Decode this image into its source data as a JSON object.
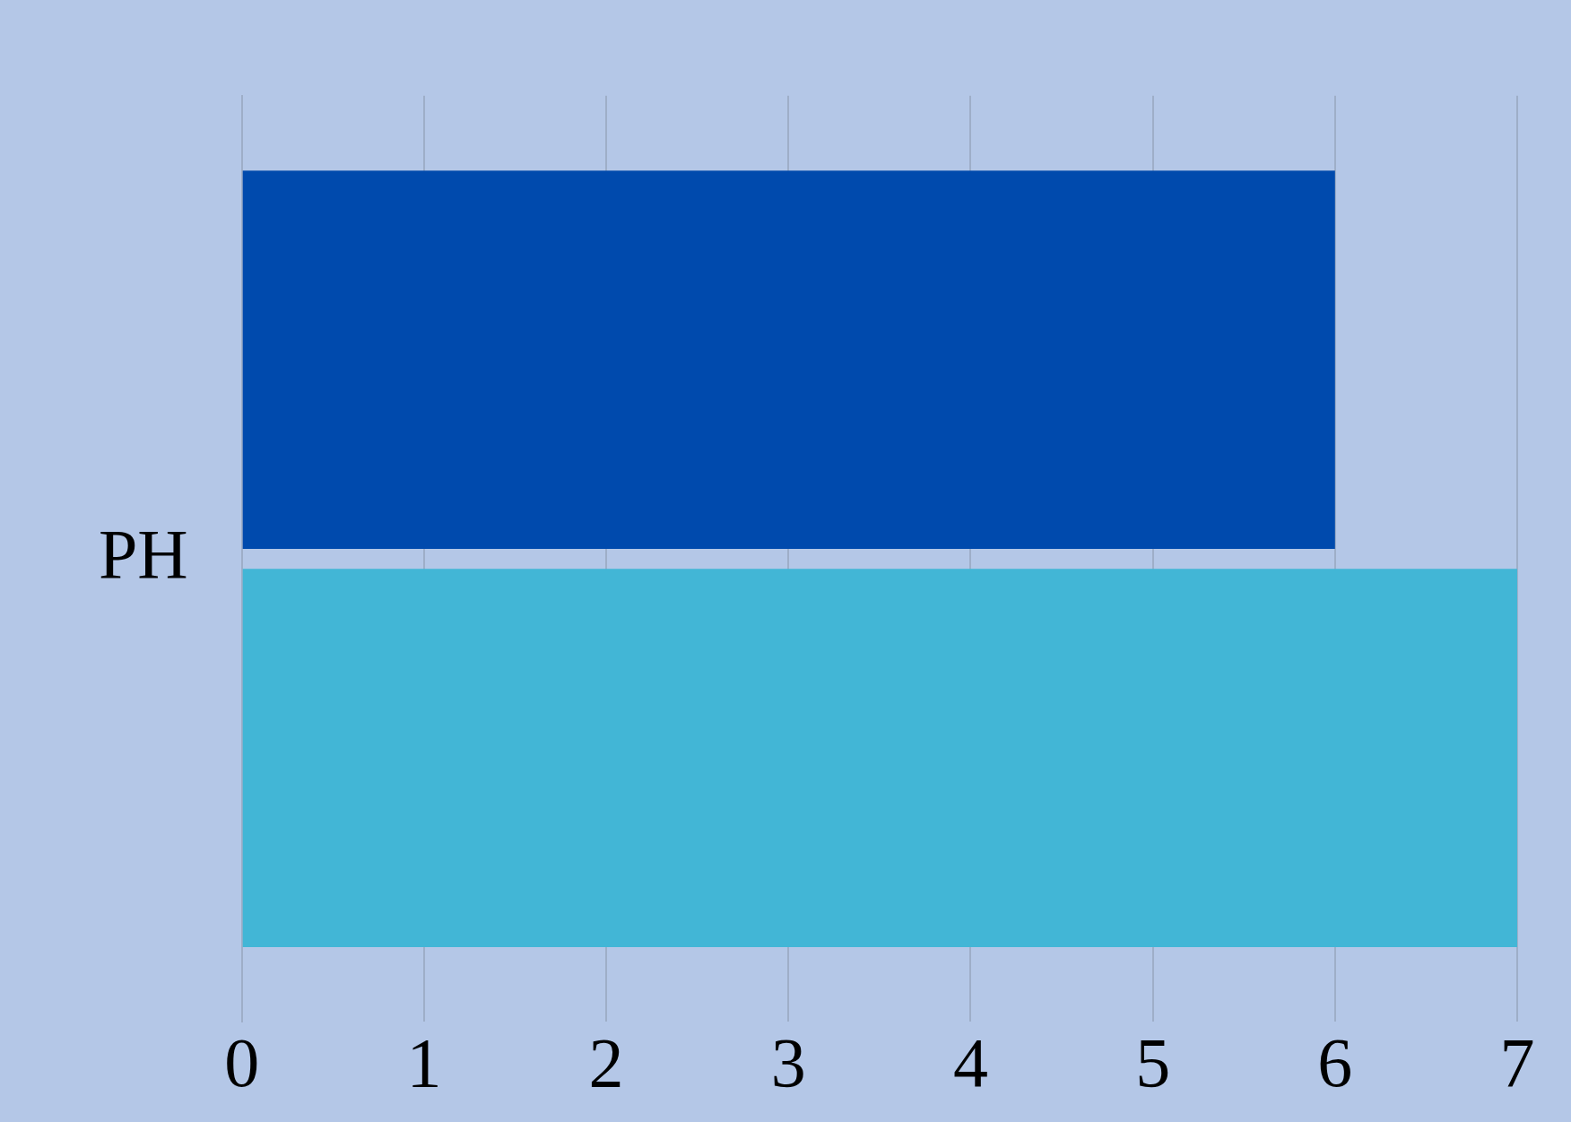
{
  "chart_data": {
    "type": "bar",
    "orientation": "horizontal",
    "categories": [
      "PH"
    ],
    "series": [
      {
        "color": "#004aad",
        "values": [
          6
        ]
      },
      {
        "color": "#42b6d6",
        "values": [
          7
        ]
      }
    ],
    "xlim": [
      0,
      7
    ],
    "xticks": [
      0,
      1,
      2,
      3,
      4,
      5,
      6,
      7
    ],
    "grid": "x",
    "legend": false
  }
}
